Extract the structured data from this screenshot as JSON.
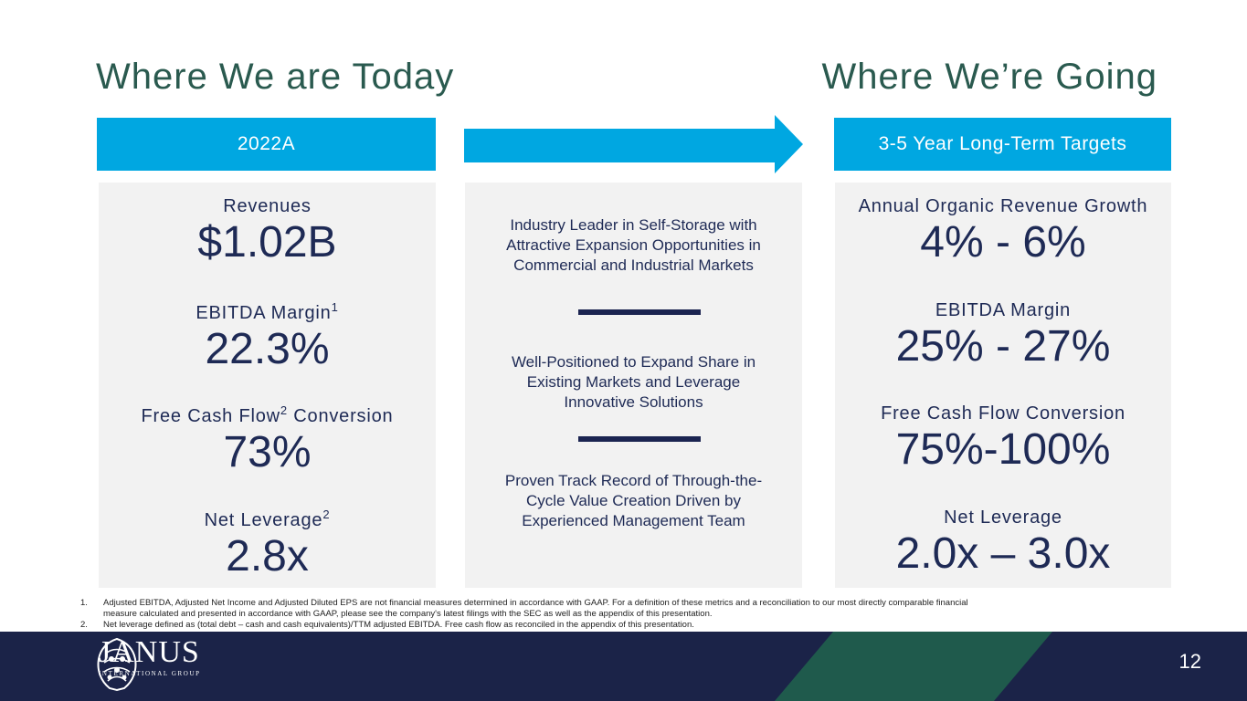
{
  "headings": {
    "left": "Where We are Today",
    "right": "Where We’re Going"
  },
  "bands": {
    "left": "2022A",
    "right": "3-5 Year Long-Term Targets"
  },
  "today": {
    "revenues": {
      "label": "Revenues",
      "value": "$1.02B"
    },
    "ebitda": {
      "label": "EBITDA Margin",
      "sup": "1",
      "value": "22.3%"
    },
    "fcf": {
      "label_a": "Free Cash Flow",
      "sup": "2",
      "label_b": " Conversion",
      "value": "73%"
    },
    "leverage": {
      "label": "Net Leverage",
      "sup": "2",
      "value": "2.8x"
    }
  },
  "pillars": [
    "Industry Leader in Self-Storage with Attractive Expansion Opportunities in Commercial and Industrial Markets",
    "Well-Positioned to Expand Share in Existing Markets and Leverage Innovative Solutions",
    "Proven Track Record of Through-the-Cycle Value Creation Driven by Experienced Management Team"
  ],
  "targets": {
    "growth": {
      "label": "Annual Organic Revenue Growth",
      "value": "4% - 6%"
    },
    "ebitda": {
      "label": "EBITDA Margin",
      "value": "25% - 27%"
    },
    "fcf": {
      "label": "Free Cash Flow Conversion",
      "value": "75%-100%"
    },
    "leverage": {
      "label": "Net Leverage",
      "value": "2.0x – 3.0x"
    }
  },
  "footnotes": [
    {
      "num": "1.",
      "text": "Adjusted EBITDA, Adjusted Net Income and Adjusted Diluted EPS are not financial measures determined in accordance with GAAP. For a definition of these metrics and a reconciliation to our most directly comparable financial measure calculated and presented in accordance with GAAP, please see the company's latest filings with the SEC as well as the appendix of this presentation."
    },
    {
      "num": "2.",
      "text": "Net leverage defined as (total debt – cash and cash equivalents)/TTM adjusted EBITDA. Free cash flow as reconciled in the appendix of this presentation."
    }
  ],
  "footer": {
    "logo_name": "JANUS",
    "logo_sub": "INTERNATIONAL GROUP",
    "page": "12"
  },
  "colors": {
    "accent": "#00a7e1",
    "navy": "#1b2348",
    "heading": "#2a5a4f",
    "panel": "#f2f2f2",
    "stripe": "#1f5a4c"
  }
}
